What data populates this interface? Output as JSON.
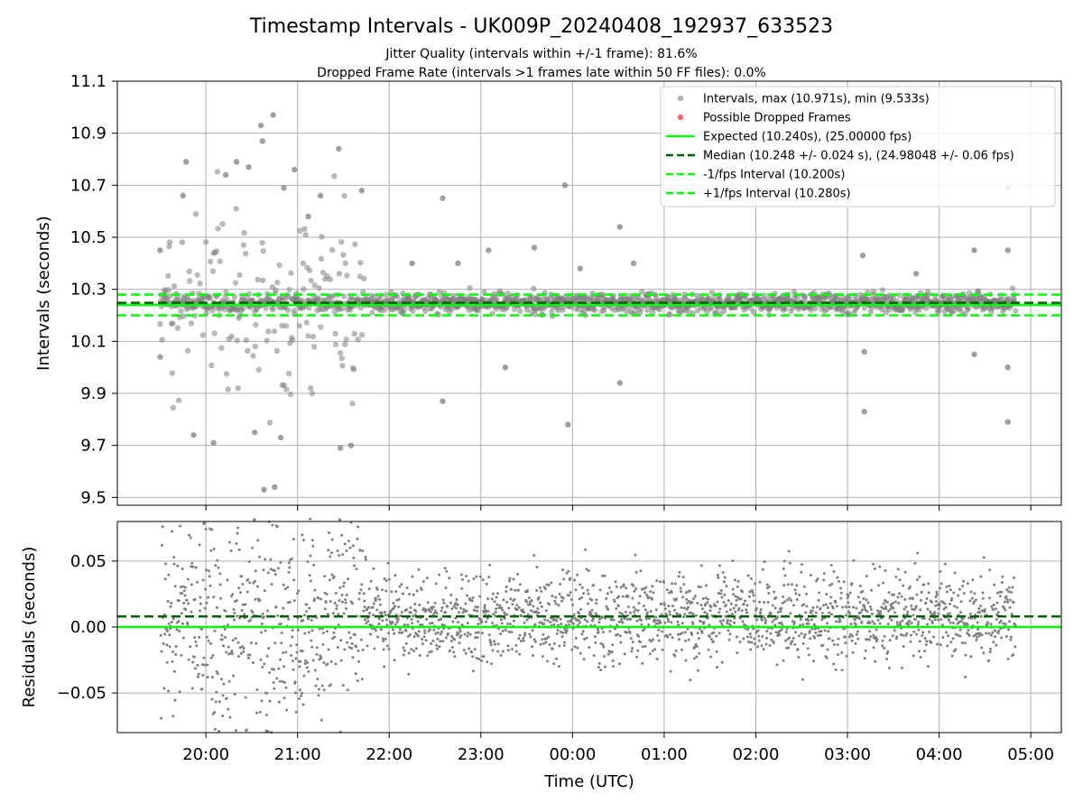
{
  "title": "Timestamp Intervals - UK009P_20240408_192937_633523",
  "subtitle_1": "Jitter Quality (intervals within +/-1 frame): 81.6%",
  "subtitle_2": "Dropped Frame Rate (intervals >1 frames late within 50 FF files): 0.0%",
  "colors": {
    "points": "#808080",
    "dropped": "#ff0000",
    "expected": "#00ff00",
    "median": "#006400",
    "interval_band": "#00ff00",
    "grid": "#b0b0b0"
  },
  "chart_data": [
    {
      "type": "scatter",
      "name": "intervals-panel",
      "ylabel": "Intervals (seconds)",
      "xlabel": "",
      "ylim": [
        9.47,
        11.1
      ],
      "xlim": [
        "19:02",
        "05:20"
      ],
      "y_ticks": [
        "9.5",
        "9.7",
        "9.9",
        "10.1",
        "10.3",
        "10.5",
        "10.7",
        "10.9",
        "11.1"
      ],
      "grid": true,
      "legend_position": "top-right",
      "legend": [
        "Intervals, max (10.971s), min (9.533s)",
        "Possible Dropped Frames",
        "Expected (10.240s), (25.00000 fps)",
        "Median (10.248 +/- 0.024 s), (24.98048 +/- 0.06 fps)",
        "-1/fps Interval (10.200s)",
        "+1/fps Interval (10.280s)"
      ],
      "reference_lines": {
        "expected": 10.24,
        "median": 10.248,
        "minus_1_fps": 10.2,
        "plus_1_fps": 10.28
      },
      "max_interval": 10.971,
      "min_interval": 9.533,
      "scatter_spread": {
        "dense_region": [
          "19:30",
          "21:45"
        ],
        "typical_range": [
          10.2,
          10.28
        ]
      },
      "outliers": [
        {
          "x": "19:30",
          "y": 10.45
        },
        {
          "x": "19:30",
          "y": 10.04
        },
        {
          "x": "19:47",
          "y": 10.79
        },
        {
          "x": "19:45",
          "y": 10.66
        },
        {
          "x": "19:52",
          "y": 9.74
        },
        {
          "x": "20:05",
          "y": 9.71
        },
        {
          "x": "20:13",
          "y": 10.74
        },
        {
          "x": "20:20",
          "y": 10.79
        },
        {
          "x": "20:28",
          "y": 10.77
        },
        {
          "x": "20:32",
          "y": 9.75
        },
        {
          "x": "20:36",
          "y": 10.93
        },
        {
          "x": "20:37",
          "y": 10.87
        },
        {
          "x": "20:38",
          "y": 9.53
        },
        {
          "x": "20:44",
          "y": 10.97
        },
        {
          "x": "20:45",
          "y": 9.54
        },
        {
          "x": "20:49",
          "y": 9.73
        },
        {
          "x": "20:51",
          "y": 10.69
        },
        {
          "x": "20:58",
          "y": 10.76
        },
        {
          "x": "21:07",
          "y": 10.58
        },
        {
          "x": "21:15",
          "y": 10.66
        },
        {
          "x": "21:27",
          "y": 10.84
        },
        {
          "x": "21:28",
          "y": 9.69
        },
        {
          "x": "21:35",
          "y": 9.7
        },
        {
          "x": "21:42",
          "y": 10.68
        },
        {
          "x": "22:15",
          "y": 10.4
        },
        {
          "x": "22:35",
          "y": 10.65
        },
        {
          "x": "22:35",
          "y": 9.87
        },
        {
          "x": "22:45",
          "y": 10.4
        },
        {
          "x": "23:05",
          "y": 10.45
        },
        {
          "x": "23:16",
          "y": 10.0
        },
        {
          "x": "23:35",
          "y": 10.46
        },
        {
          "x": "23:55",
          "y": 10.7
        },
        {
          "x": "23:57",
          "y": 9.78
        },
        {
          "x": "00:05",
          "y": 10.38
        },
        {
          "x": "00:31",
          "y": 10.54
        },
        {
          "x": "00:31",
          "y": 9.94
        },
        {
          "x": "00:40",
          "y": 10.4
        },
        {
          "x": "01:30",
          "y": 10.25
        },
        {
          "x": "03:10",
          "y": 10.43
        },
        {
          "x": "03:11",
          "y": 10.06
        },
        {
          "x": "03:11",
          "y": 9.83
        },
        {
          "x": "03:45",
          "y": 10.36
        },
        {
          "x": "04:23",
          "y": 10.45
        },
        {
          "x": "04:23",
          "y": 10.05
        },
        {
          "x": "04:45",
          "y": 10.69
        },
        {
          "x": "04:45",
          "y": 10.45
        },
        {
          "x": "04:45",
          "y": 10.0
        },
        {
          "x": "04:45",
          "y": 9.79
        }
      ]
    },
    {
      "type": "scatter",
      "name": "residuals-panel",
      "ylabel": "Residuals (seconds)",
      "xlabel": "Time (UTC)",
      "ylim": [
        -0.08,
        0.08
      ],
      "y_ticks": [
        "−0.05",
        "0.00",
        "0.05"
      ],
      "x_ticks": [
        "20:00",
        "21:00",
        "22:00",
        "23:00",
        "00:00",
        "01:00",
        "02:00",
        "03:00",
        "04:00",
        "05:00"
      ],
      "grid": true,
      "reference_lines": {
        "expected": 0.0,
        "median": 0.008
      },
      "scatter_spread": {
        "typical_range": [
          -0.03,
          0.045
        ],
        "noisy_region": [
          "19:30",
          "21:45"
        ]
      }
    }
  ]
}
